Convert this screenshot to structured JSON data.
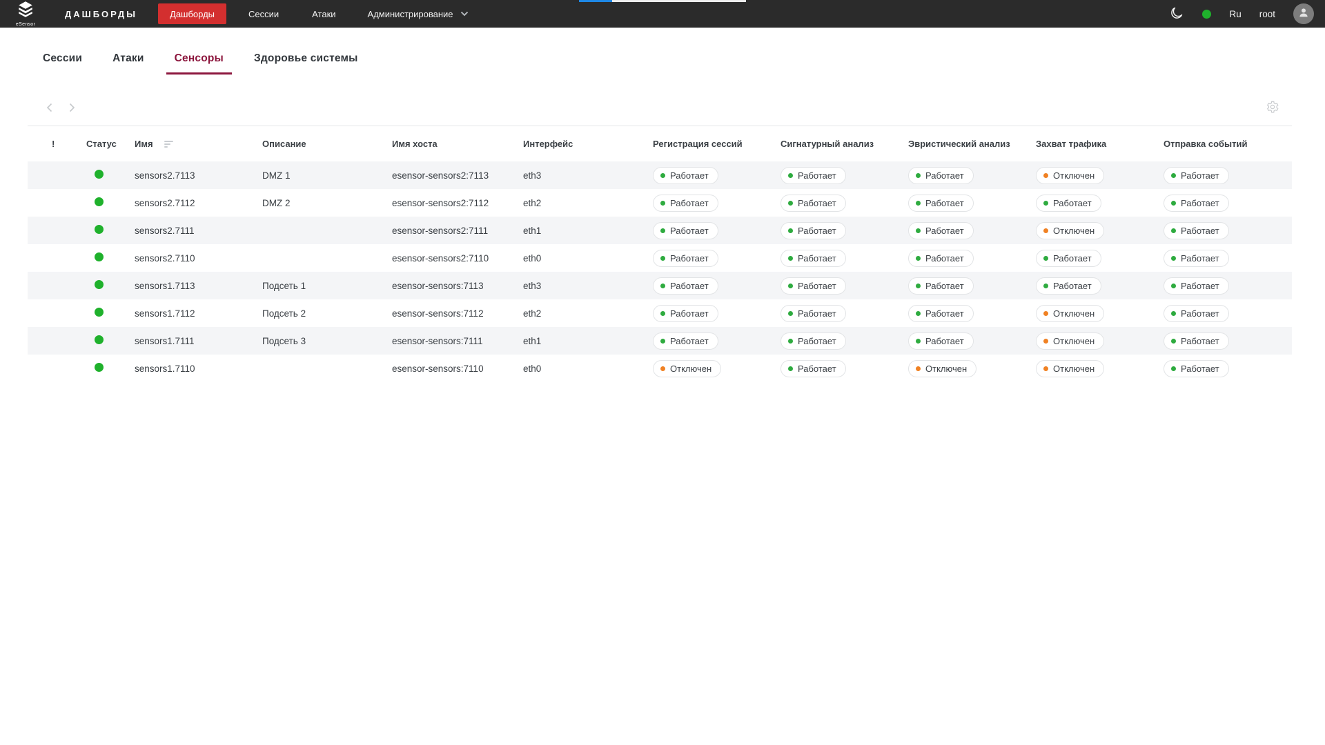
{
  "topbar": {
    "brand": "eSensor",
    "section_label": "ДАШБОРДЫ",
    "items": [
      {
        "label": "Дашборды",
        "active": true
      },
      {
        "label": "Сессии",
        "active": false
      },
      {
        "label": "Атаки",
        "active": false
      },
      {
        "label": "Администрирование",
        "active": false,
        "has_dropdown": true
      }
    ],
    "icons": [
      "moon-icon",
      "connection-status-dot",
      "avatar-icon"
    ],
    "language": "Ru",
    "username": "root"
  },
  "tabs": {
    "items": [
      {
        "label": "Сессии",
        "active": false
      },
      {
        "label": "Атаки",
        "active": false
      },
      {
        "label": "Сенсоры",
        "active": true
      },
      {
        "label": "Здоровье системы",
        "active": false
      }
    ]
  },
  "toolbar": {
    "icons": [
      "chevron-left-icon",
      "chevron-right-icon",
      "gear-icon"
    ]
  },
  "table": {
    "columns": [
      "!",
      "Статус",
      "Имя",
      "Описание",
      "Имя хоста",
      "Интерфейс",
      "Регистрация сессий",
      "Сигнатурный анализ",
      "Эвристический анализ",
      "Захват трафика",
      "Отправка событий"
    ],
    "status_labels": {
      "on": "Работает",
      "off": "Отключен"
    },
    "rows": [
      {
        "status": "on",
        "name": "sensors2.7113",
        "description": "DMZ 1",
        "host": "esensor-sensors2:7113",
        "interface": "eth3",
        "services": [
          "on",
          "on",
          "on",
          "off",
          "on"
        ]
      },
      {
        "status": "on",
        "name": "sensors2.7112",
        "description": "DMZ 2",
        "host": "esensor-sensors2:7112",
        "interface": "eth2",
        "services": [
          "on",
          "on",
          "on",
          "on",
          "on"
        ]
      },
      {
        "status": "on",
        "name": "sensors2.7111",
        "description": "",
        "host": "esensor-sensors2:7111",
        "interface": "eth1",
        "services": [
          "on",
          "on",
          "on",
          "off",
          "on"
        ]
      },
      {
        "status": "on",
        "name": "sensors2.7110",
        "description": "",
        "host": "esensor-sensors2:7110",
        "interface": "eth0",
        "services": [
          "on",
          "on",
          "on",
          "on",
          "on"
        ]
      },
      {
        "status": "on",
        "name": "sensors1.7113",
        "description": "Подсеть 1",
        "host": "esensor-sensors:7113",
        "interface": "eth3",
        "services": [
          "on",
          "on",
          "on",
          "on",
          "on"
        ]
      },
      {
        "status": "on",
        "name": "sensors1.7112",
        "description": "Подсеть 2",
        "host": "esensor-sensors:7112",
        "interface": "eth2",
        "services": [
          "on",
          "on",
          "on",
          "off",
          "on"
        ]
      },
      {
        "status": "on",
        "name": "sensors1.7111",
        "description": "Подсеть 3",
        "host": "esensor-sensors:7111",
        "interface": "eth1",
        "services": [
          "on",
          "on",
          "on",
          "off",
          "on"
        ]
      },
      {
        "status": "on",
        "name": "sensors1.7110",
        "description": "",
        "host": "esensor-sensors:7110",
        "interface": "eth0",
        "services": [
          "off",
          "on",
          "off",
          "off",
          "on"
        ]
      }
    ]
  },
  "colors": {
    "topbar_bg": "#2b2b2b",
    "accent_red": "#d32f2f",
    "active_tab": "#8c163d",
    "status_green": "#1fb12c",
    "badge_green": "#2eab3f",
    "badge_orange": "#f08123",
    "row_stripe": "#f4f5f7"
  }
}
